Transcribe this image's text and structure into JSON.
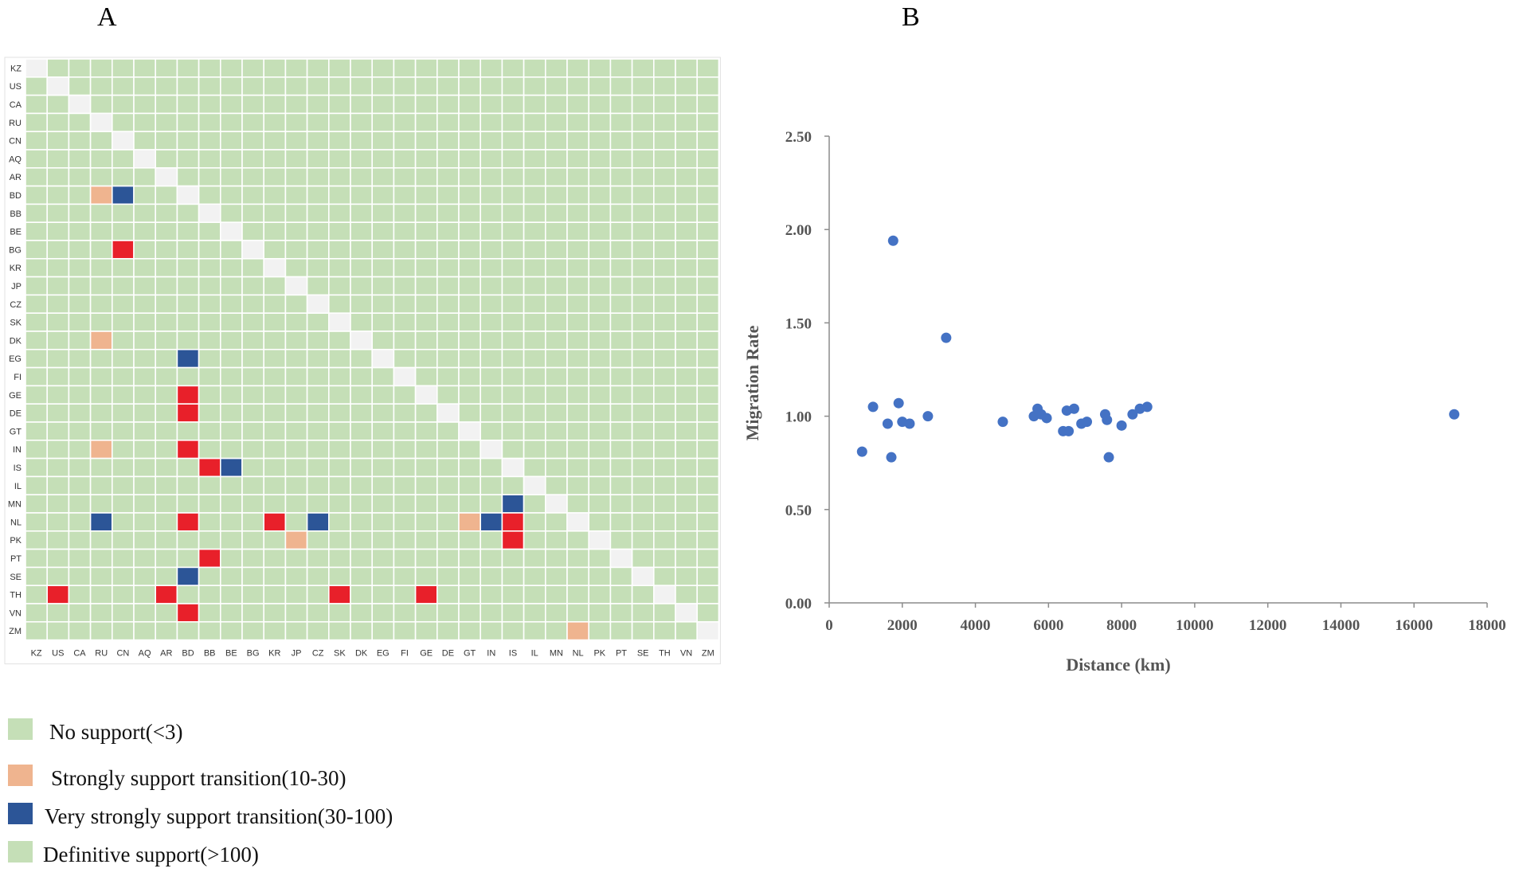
{
  "panels": {
    "a": "A",
    "b": "B"
  },
  "colors": {
    "no_support": "#c5dfb7",
    "strong": "#efb48f",
    "very_strong": "#2c5597",
    "definitive_cell": "#e8202a",
    "definitive_legend": "#c5dfb7",
    "diagonal": "#f2f2f2",
    "point": "#4472c4",
    "axis": "#8c8c8c"
  },
  "legend": [
    {
      "label": "No support(<3)",
      "color": "#c5dfb7"
    },
    {
      "label": "Strongly support transition(10-30)",
      "color": "#efb48f"
    },
    {
      "label": "Very strongly support transition(30-100)",
      "color": "#2c5597"
    },
    {
      "label": "Definitive support(>100)",
      "color": "#c5dfb7"
    }
  ],
  "chart_data": [
    {
      "type": "heatmap",
      "title": "A",
      "rows": [
        "KZ",
        "US",
        "CA",
        "RU",
        "CN",
        "AQ",
        "AR",
        "BD",
        "BB",
        "BE",
        "BG",
        "KR",
        "JP",
        "CZ",
        "SK",
        "DK",
        "EG",
        "FI",
        "GE",
        "DE",
        "GT",
        "IN",
        "IS",
        "IL",
        "MN",
        "NL",
        "PK",
        "PT",
        "SE",
        "TH",
        "VN",
        "ZM"
      ],
      "cols": [
        "KZ",
        "US",
        "CA",
        "RU",
        "CN",
        "AQ",
        "AR",
        "BD",
        "BB",
        "BE",
        "BG",
        "KR",
        "JP",
        "CZ",
        "SK",
        "DK",
        "EG",
        "FI",
        "GE",
        "DE",
        "GT",
        "IN",
        "IS",
        "IL",
        "MN",
        "NL",
        "PK",
        "PT",
        "SE",
        "TH",
        "VN",
        "ZM"
      ],
      "levels": {
        "0": "No support(<3)",
        "1": "Strongly support transition(10-30)",
        "2": "Very strongly support transition(30-100)",
        "3": "Definitive support(>100)"
      },
      "cells": [
        {
          "row": "BD",
          "col": "RU",
          "level": 1
        },
        {
          "row": "BD",
          "col": "CN",
          "level": 2
        },
        {
          "row": "BG",
          "col": "CN",
          "level": 3
        },
        {
          "row": "DK",
          "col": "RU",
          "level": 1
        },
        {
          "row": "EG",
          "col": "BD",
          "level": 2
        },
        {
          "row": "GE",
          "col": "BD",
          "level": 3
        },
        {
          "row": "DE",
          "col": "BD",
          "level": 3
        },
        {
          "row": "IN",
          "col": "RU",
          "level": 1
        },
        {
          "row": "IN",
          "col": "BD",
          "level": 3
        },
        {
          "row": "IS",
          "col": "BB",
          "level": 3
        },
        {
          "row": "IS",
          "col": "BE",
          "level": 2
        },
        {
          "row": "MN",
          "col": "IS",
          "level": 2
        },
        {
          "row": "NL",
          "col": "RU",
          "level": 2
        },
        {
          "row": "NL",
          "col": "BD",
          "level": 3
        },
        {
          "row": "NL",
          "col": "KR",
          "level": 3
        },
        {
          "row": "NL",
          "col": "CZ",
          "level": 2
        },
        {
          "row": "NL",
          "col": "GT",
          "level": 1
        },
        {
          "row": "NL",
          "col": "IN",
          "level": 2
        },
        {
          "row": "NL",
          "col": "IS",
          "level": 3
        },
        {
          "row": "PK",
          "col": "JP",
          "level": 1
        },
        {
          "row": "PK",
          "col": "IS",
          "level": 3
        },
        {
          "row": "PT",
          "col": "BB",
          "level": 3
        },
        {
          "row": "SE",
          "col": "BD",
          "level": 2
        },
        {
          "row": "TH",
          "col": "US",
          "level": 3
        },
        {
          "row": "TH",
          "col": "AR",
          "level": 3
        },
        {
          "row": "TH",
          "col": "SK",
          "level": 3
        },
        {
          "row": "TH",
          "col": "GE",
          "level": 3
        },
        {
          "row": "VN",
          "col": "BD",
          "level": 3
        },
        {
          "row": "ZM",
          "col": "NL",
          "level": 1
        }
      ]
    },
    {
      "type": "scatter",
      "title": "B",
      "xlabel": "Distance (km)",
      "ylabel": "Migration Rate",
      "xlim": [
        0,
        18000
      ],
      "ylim": [
        0,
        2.5
      ],
      "xticks": [
        "0",
        "2000",
        "4000",
        "6000",
        "8000",
        "10000",
        "12000",
        "14000",
        "16000",
        "18000"
      ],
      "yticks": [
        "0.00",
        "0.50",
        "1.00",
        "1.50",
        "2.00",
        "2.50"
      ],
      "grid": false,
      "points": [
        {
          "x": 900,
          "y": 0.81
        },
        {
          "x": 1200,
          "y": 1.05
        },
        {
          "x": 1600,
          "y": 0.96
        },
        {
          "x": 1700,
          "y": 0.78
        },
        {
          "x": 1750,
          "y": 1.94
        },
        {
          "x": 1900,
          "y": 1.07
        },
        {
          "x": 2000,
          "y": 0.97
        },
        {
          "x": 2200,
          "y": 0.96
        },
        {
          "x": 2700,
          "y": 1.0
        },
        {
          "x": 3200,
          "y": 1.42
        },
        {
          "x": 4750,
          "y": 0.97
        },
        {
          "x": 5600,
          "y": 1.0
        },
        {
          "x": 5700,
          "y": 1.04
        },
        {
          "x": 5800,
          "y": 1.01
        },
        {
          "x": 5950,
          "y": 0.99
        },
        {
          "x": 6400,
          "y": 0.92
        },
        {
          "x": 6500,
          "y": 1.03
        },
        {
          "x": 6550,
          "y": 0.92
        },
        {
          "x": 6700,
          "y": 1.04
        },
        {
          "x": 6900,
          "y": 0.96
        },
        {
          "x": 7050,
          "y": 0.97
        },
        {
          "x": 7550,
          "y": 1.01
        },
        {
          "x": 7600,
          "y": 0.98
        },
        {
          "x": 7650,
          "y": 0.78
        },
        {
          "x": 8000,
          "y": 0.95
        },
        {
          "x": 8300,
          "y": 1.01
        },
        {
          "x": 8500,
          "y": 1.04
        },
        {
          "x": 8700,
          "y": 1.05
        },
        {
          "x": 17100,
          "y": 1.01
        }
      ]
    }
  ]
}
